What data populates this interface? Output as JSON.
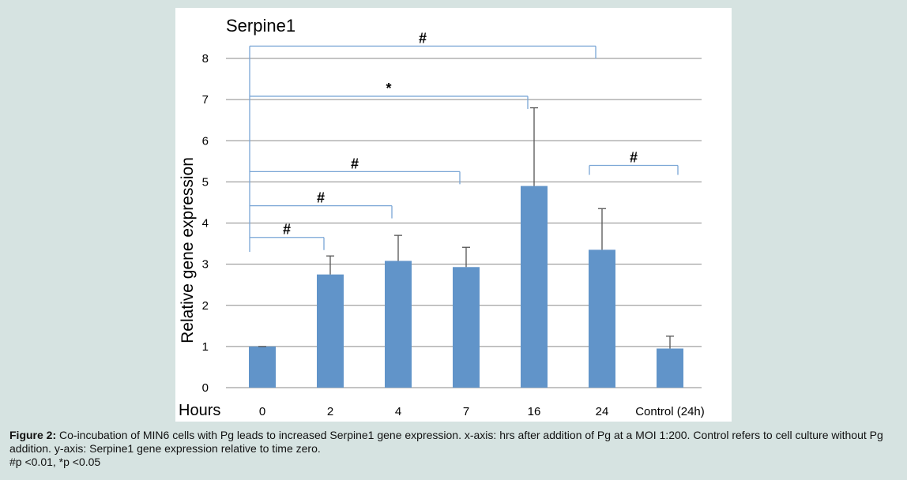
{
  "chart_data": {
    "type": "bar",
    "title": "Serpine1",
    "xlabel": "Hours",
    "ylabel": "Relative gene expression",
    "ylim": [
      0,
      8
    ],
    "yticks": [
      "0",
      "1",
      "2",
      "3",
      "4",
      "5",
      "6",
      "7",
      "8"
    ],
    "categories": [
      "0",
      "2",
      "4",
      "7",
      "16",
      "24",
      "Control (24h)"
    ],
    "values": [
      1.0,
      2.75,
      3.08,
      2.93,
      4.9,
      3.35,
      0.95
    ],
    "errors": [
      0.0,
      0.45,
      0.62,
      0.48,
      1.9,
      1.0,
      0.3
    ],
    "bar_color": "#6194c9",
    "bracket_color": "#7aa6d6",
    "grid": true,
    "significance": [
      {
        "from": "0",
        "to": "2",
        "y": 3.65,
        "label": "#"
      },
      {
        "from": "0",
        "to": "4",
        "y": 4.42,
        "label": "#"
      },
      {
        "from": "0",
        "to": "7",
        "y": 5.25,
        "label": "#"
      },
      {
        "from": "0",
        "to": "16",
        "y": 7.08,
        "label": "*"
      },
      {
        "from": "0",
        "to": "24",
        "y": 8.3,
        "label": "#"
      },
      {
        "from": "24",
        "to": "Control (24h)",
        "y": 5.4,
        "label": "#"
      }
    ]
  },
  "caption": {
    "label": "Figure 2:",
    "text": " Co-incubation of MIN6 cells with Pg leads to increased Serpine1 gene expression. x-axis: hrs after addition of Pg at a MOI 1:200. Control refers to cell culture without Pg addition. y-axis: Serpine1 gene expression relative to time zero.",
    "footnote": "#p <0.01, *p <0.05"
  }
}
